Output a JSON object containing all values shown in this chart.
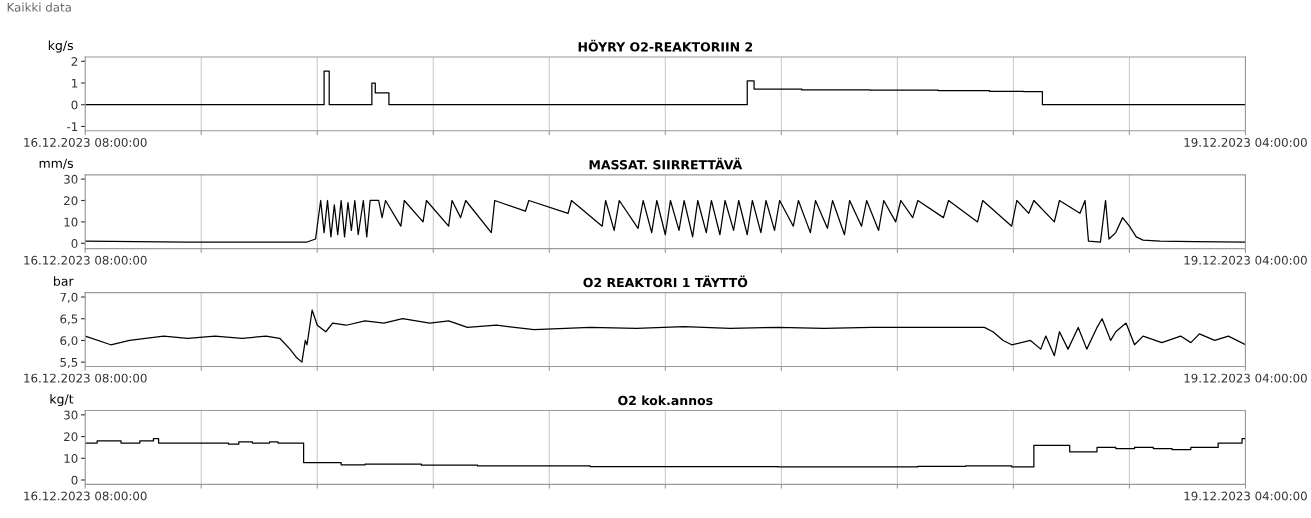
{
  "chart_data": [
    {
      "type": "step",
      "title": "HÖYRY O2-REAKTORIIN 2",
      "ylabel": "kg/s",
      "annotations": [
        "Kaikki data"
      ],
      "grid": "x",
      "legend": false,
      "tick_labels": "xy",
      "xlim": [
        "2023-12-16T08:00",
        "2023-12-19T04:00"
      ],
      "xticks": [
        {
          "value": "2023-12-16T08:00",
          "label": "16.12.2023 08:00:00"
        },
        {
          "value": "2023-12-16T14:48",
          "label": null
        },
        {
          "value": "2023-12-16T21:36",
          "label": null
        },
        {
          "value": "2023-12-17T04:24",
          "label": null
        },
        {
          "value": "2023-12-17T11:12",
          "label": null
        },
        {
          "value": "2023-12-17T18:00",
          "label": null
        },
        {
          "value": "2023-12-18T00:48",
          "label": null
        },
        {
          "value": "2023-12-18T07:36",
          "label": null
        },
        {
          "value": "2023-12-18T14:24",
          "label": null
        },
        {
          "value": "2023-12-18T21:12",
          "label": null
        },
        {
          "value": "2023-12-19T04:00",
          "label": "19.12.2023 04:00:00"
        }
      ],
      "ylim": [
        -1.2,
        2.2
      ],
      "yticks": [
        -1,
        0,
        1,
        2
      ],
      "series": [
        {
          "color": "#000000",
          "x": [
            "2023-12-16T08:00",
            "2023-12-16T22:00",
            "2023-12-16T22:18",
            "2023-12-17T00:48",
            "2023-12-17T01:00",
            "2023-12-17T01:48",
            "2023-12-17T22:48",
            "2023-12-17T23:12",
            "2023-12-18T02:00",
            "2023-12-18T06:00",
            "2023-12-18T10:00",
            "2023-12-18T13:00",
            "2023-12-18T15:00",
            "2023-12-18T16:06",
            "2023-12-19T04:00"
          ],
          "values": [
            0,
            1.55,
            0,
            1.0,
            0.55,
            0,
            1.1,
            0.72,
            0.68,
            0.67,
            0.65,
            0.62,
            0.6,
            0,
            0
          ]
        }
      ]
    },
    {
      "type": "line",
      "title": "MASSAT. SIIRRETTÄVÄ",
      "ylabel": "mm/s",
      "grid": "x",
      "legend": false,
      "xlim": [
        "2023-12-16T08:00",
        "2023-12-19T04:00"
      ],
      "xticks": [
        {
          "value": "2023-12-16T08:00",
          "label": "16.12.2023 08:00:00"
        },
        {
          "value": "2023-12-16T14:48",
          "label": null
        },
        {
          "value": "2023-12-16T21:36",
          "label": null
        },
        {
          "value": "2023-12-17T04:24",
          "label": null
        },
        {
          "value": "2023-12-17T11:12",
          "label": null
        },
        {
          "value": "2023-12-17T18:00",
          "label": null
        },
        {
          "value": "2023-12-18T00:48",
          "label": null
        },
        {
          "value": "2023-12-18T07:36",
          "label": null
        },
        {
          "value": "2023-12-18T14:24",
          "label": null
        },
        {
          "value": "2023-12-18T21:12",
          "label": null
        },
        {
          "value": "2023-12-19T04:00",
          "label": "19.12.2023 04:00:00"
        }
      ],
      "ylim": [
        -2.5,
        32
      ],
      "yticks": [
        0,
        10,
        20,
        30
      ],
      "series": [
        {
          "color": "#000000",
          "x": [
            "2023-12-16T08:00",
            "2023-12-16T11:00",
            "2023-12-16T14:00",
            "2023-12-16T18:00",
            "2023-12-16T21:00",
            "2023-12-16T21:30",
            "2023-12-16T21:48",
            "2023-12-16T22:00",
            "2023-12-16T22:12",
            "2023-12-16T22:24",
            "2023-12-16T22:36",
            "2023-12-16T22:48",
            "2023-12-16T23:00",
            "2023-12-16T23:12",
            "2023-12-16T23:24",
            "2023-12-16T23:36",
            "2023-12-16T23:48",
            "2023-12-17T00:00",
            "2023-12-17T00:18",
            "2023-12-17T00:30",
            "2023-12-17T00:42",
            "2023-12-17T01:12",
            "2023-12-17T01:24",
            "2023-12-17T01:36",
            "2023-12-17T02:30",
            "2023-12-17T02:42",
            "2023-12-17T03:48",
            "2023-12-17T04:00",
            "2023-12-17T05:18",
            "2023-12-17T05:30",
            "2023-12-17T06:00",
            "2023-12-17T06:18",
            "2023-12-17T07:48",
            "2023-12-17T08:00",
            "2023-12-17T09:48",
            "2023-12-17T10:00",
            "2023-12-17T12:18",
            "2023-12-17T12:30",
            "2023-12-17T14:18",
            "2023-12-17T14:30",
            "2023-12-17T15:00",
            "2023-12-17T15:18",
            "2023-12-17T16:24",
            "2023-12-17T16:42",
            "2023-12-17T17:12",
            "2023-12-17T17:30",
            "2023-12-17T18:00",
            "2023-12-17T18:18",
            "2023-12-17T18:48",
            "2023-12-17T19:06",
            "2023-12-17T19:36",
            "2023-12-17T19:54",
            "2023-12-17T20:24",
            "2023-12-17T20:42",
            "2023-12-17T21:12",
            "2023-12-17T21:30",
            "2023-12-17T22:00",
            "2023-12-17T22:18",
            "2023-12-17T22:48",
            "2023-12-17T23:06",
            "2023-12-17T23:36",
            "2023-12-17T23:54",
            "2023-12-18T00:24",
            "2023-12-18T00:42",
            "2023-12-18T01:30",
            "2023-12-18T01:48",
            "2023-12-18T02:30",
            "2023-12-18T02:48",
            "2023-12-18T03:30",
            "2023-12-18T03:48",
            "2023-12-18T04:30",
            "2023-12-18T04:48",
            "2023-12-18T05:30",
            "2023-12-18T05:48",
            "2023-12-18T06:30",
            "2023-12-18T06:48",
            "2023-12-18T07:30",
            "2023-12-18T07:48",
            "2023-12-18T08:30",
            "2023-12-18T08:48",
            "2023-12-18T10:18",
            "2023-12-18T10:36",
            "2023-12-18T12:18",
            "2023-12-18T12:36",
            "2023-12-18T14:18",
            "2023-12-18T14:36",
            "2023-12-18T15:18",
            "2023-12-18T15:36",
            "2023-12-18T16:48",
            "2023-12-18T17:06",
            "2023-12-18T18:18",
            "2023-12-18T18:36",
            "2023-12-18T18:48",
            "2023-12-18T19:30",
            "2023-12-18T19:48",
            "2023-12-18T20:00",
            "2023-12-18T20:24",
            "2023-12-18T20:48",
            "2023-12-18T21:12",
            "2023-12-18T21:36",
            "2023-12-18T22:00",
            "2023-12-18T23:00",
            "2023-12-19T01:00",
            "2023-12-19T04:00"
          ],
          "values": [
            1,
            0.8,
            0.6,
            0.5,
            0.6,
            2,
            20,
            5,
            20,
            3,
            18,
            4,
            20,
            3,
            19,
            6,
            20,
            4,
            20,
            3,
            20,
            20,
            12,
            20,
            8,
            20,
            10,
            20,
            8,
            20,
            12,
            20,
            5,
            20,
            15,
            20,
            14,
            20,
            8,
            20,
            6,
            20,
            7,
            20,
            5,
            20,
            4,
            20,
            6,
            20,
            3,
            20,
            5,
            20,
            4,
            20,
            6,
            20,
            4,
            20,
            5,
            20,
            6,
            20,
            8,
            20,
            5,
            20,
            7,
            20,
            4,
            20,
            8,
            20,
            6,
            20,
            10,
            20,
            12,
            20,
            12,
            20,
            10,
            20,
            8,
            20,
            14,
            20,
            10,
            20,
            14,
            20,
            1,
            0.5,
            20,
            2,
            5,
            12,
            8,
            3,
            1.5,
            1,
            0.8,
            0.5
          ]
        }
      ]
    },
    {
      "type": "line",
      "title": "O2 REAKTORI 1 TÄYTTÖ",
      "ylabel": "bar",
      "grid": "x",
      "legend": false,
      "xlim": [
        "2023-12-16T08:00",
        "2023-12-19T04:00"
      ],
      "xticks": [
        {
          "value": "2023-12-16T08:00",
          "label": "16.12.2023 08:00:00"
        },
        {
          "value": "2023-12-16T14:48",
          "label": null
        },
        {
          "value": "2023-12-16T21:36",
          "label": null
        },
        {
          "value": "2023-12-17T04:24",
          "label": null
        },
        {
          "value": "2023-12-17T11:12",
          "label": null
        },
        {
          "value": "2023-12-17T18:00",
          "label": null
        },
        {
          "value": "2023-12-18T00:48",
          "label": null
        },
        {
          "value": "2023-12-18T07:36",
          "label": null
        },
        {
          "value": "2023-12-18T14:24",
          "label": null
        },
        {
          "value": "2023-12-18T21:12",
          "label": null
        },
        {
          "value": "2023-12-19T04:00",
          "label": "19.12.2023 04:00:00"
        }
      ],
      "ylim": [
        5.4,
        7.1
      ],
      "yticks": [
        {
          "value": 5.5,
          "label": "5,5"
        },
        {
          "value": 6.0,
          "label": "6,0"
        },
        {
          "value": 6.5,
          "label": "6,5"
        },
        {
          "value": 7.0,
          "label": "7,0"
        }
      ],
      "series": [
        {
          "color": "#000000",
          "x": [
            "2023-12-16T08:00",
            "2023-12-16T09:30",
            "2023-12-16T10:36",
            "2023-12-16T12:36",
            "2023-12-16T14:00",
            "2023-12-16T15:36",
            "2023-12-16T17:12",
            "2023-12-16T18:36",
            "2023-12-16T19:24",
            "2023-12-16T20:00",
            "2023-12-16T20:24",
            "2023-12-16T20:42",
            "2023-12-16T20:54",
            "2023-12-16T21:00",
            "2023-12-16T21:18",
            "2023-12-16T21:36",
            "2023-12-16T22:06",
            "2023-12-16T22:30",
            "2023-12-16T23:18",
            "2023-12-17T00:24",
            "2023-12-17T01:30",
            "2023-12-17T02:36",
            "2023-12-17T04:12",
            "2023-12-17T05:18",
            "2023-12-17T06:24",
            "2023-12-17T08:06",
            "2023-12-17T10:18",
            "2023-12-17T13:36",
            "2023-12-17T16:18",
            "2023-12-17T19:06",
            "2023-12-17T21:48",
            "2023-12-18T00:36",
            "2023-12-18T03:18",
            "2023-12-18T06:06",
            "2023-12-18T08:48",
            "2023-12-18T11:36",
            "2023-12-18T12:42",
            "2023-12-18T13:12",
            "2023-12-18T13:48",
            "2023-12-18T14:18",
            "2023-12-18T15:24",
            "2023-12-18T16:00",
            "2023-12-18T16:18",
            "2023-12-18T16:48",
            "2023-12-18T17:06",
            "2023-12-18T17:36",
            "2023-12-18T18:12",
            "2023-12-18T18:42",
            "2023-12-18T19:18",
            "2023-12-18T19:36",
            "2023-12-18T20:06",
            "2023-12-18T20:24",
            "2023-12-18T21:00",
            "2023-12-18T21:30",
            "2023-12-18T22:00",
            "2023-12-18T23:06",
            "2023-12-19T00:12",
            "2023-12-19T00:48",
            "2023-12-19T01:18",
            "2023-12-19T02:12",
            "2023-12-19T03:00",
            "2023-12-19T04:00"
          ],
          "values": [
            6.1,
            5.9,
            6.0,
            6.1,
            6.05,
            6.1,
            6.05,
            6.1,
            6.05,
            5.8,
            5.6,
            5.5,
            6.0,
            5.9,
            6.7,
            6.35,
            6.2,
            6.4,
            6.35,
            6.45,
            6.4,
            6.5,
            6.4,
            6.45,
            6.3,
            6.35,
            6.25,
            6.3,
            6.28,
            6.32,
            6.28,
            6.3,
            6.28,
            6.3,
            6.3,
            6.3,
            6.3,
            6.2,
            6.0,
            5.9,
            6.0,
            5.8,
            6.1,
            5.65,
            6.2,
            5.8,
            6.3,
            5.8,
            6.3,
            6.5,
            6.0,
            6.2,
            6.4,
            5.9,
            6.1,
            5.95,
            6.1,
            5.95,
            6.15,
            6.0,
            6.1,
            5.9
          ]
        }
      ]
    },
    {
      "type": "step",
      "title": "O2 kok.annos",
      "ylabel": "kg/t",
      "grid": "x",
      "legend": false,
      "xlim": [
        "2023-12-16T08:00",
        "2023-12-19T04:00"
      ],
      "xticks": [
        {
          "value": "2023-12-16T08:00",
          "label": "16.12.2023 08:00:00"
        },
        {
          "value": "2023-12-16T14:48",
          "label": null
        },
        {
          "value": "2023-12-16T21:36",
          "label": null
        },
        {
          "value": "2023-12-17T04:24",
          "label": null
        },
        {
          "value": "2023-12-17T11:12",
          "label": null
        },
        {
          "value": "2023-12-17T18:00",
          "label": null
        },
        {
          "value": "2023-12-18T00:48",
          "label": null
        },
        {
          "value": "2023-12-18T07:36",
          "label": null
        },
        {
          "value": "2023-12-18T14:24",
          "label": null
        },
        {
          "value": "2023-12-18T21:12",
          "label": null
        },
        {
          "value": "2023-12-19T04:00",
          "label": "19.12.2023 04:00:00"
        }
      ],
      "ylim": [
        -2,
        32
      ],
      "yticks": [
        0,
        10,
        20,
        30
      ],
      "series": [
        {
          "color": "#000000",
          "x": [
            "2023-12-16T08:00",
            "2023-12-16T08:42",
            "2023-12-16T10:06",
            "2023-12-16T11:12",
            "2023-12-16T12:00",
            "2023-12-16T12:18",
            "2023-12-16T16:24",
            "2023-12-16T17:00",
            "2023-12-16T17:48",
            "2023-12-16T18:48",
            "2023-12-16T19:18",
            "2023-12-16T20:48",
            "2023-12-16T23:00",
            "2023-12-17T00:24",
            "2023-12-17T03:42",
            "2023-12-17T07:00",
            "2023-12-17T13:36",
            "2023-12-18T00:36",
            "2023-12-18T08:48",
            "2023-12-18T11:36",
            "2023-12-18T14:18",
            "2023-12-18T15:36",
            "2023-12-18T17:42",
            "2023-12-18T19:18",
            "2023-12-18T20:24",
            "2023-12-18T21:30",
            "2023-12-18T22:36",
            "2023-12-18T23:42",
            "2023-12-19T00:48",
            "2023-12-19T02:24",
            "2023-12-19T03:48",
            "2023-12-19T04:00"
          ],
          "values": [
            17,
            18,
            17,
            18,
            19,
            17,
            16.5,
            17.5,
            17,
            17.5,
            17,
            8,
            7,
            7.3,
            6.8,
            6.5,
            6.2,
            6,
            6.3,
            6.5,
            6,
            16,
            13,
            15,
            14.5,
            15,
            14.5,
            14,
            15,
            17,
            19,
            19
          ]
        }
      ]
    }
  ]
}
